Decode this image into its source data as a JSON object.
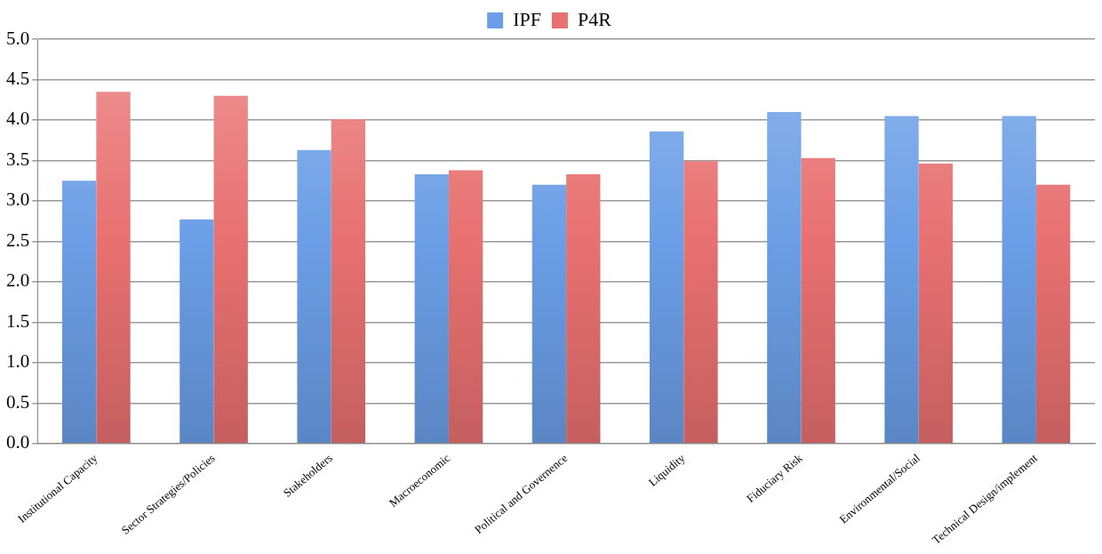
{
  "chart_data": {
    "type": "bar",
    "categories": [
      "Institutional Capacity",
      "Sector Strategies/Policies",
      "Stakeholders",
      "Macroeconomic",
      "Political and Governence",
      "Liquidity",
      "Fiduciary Risk",
      "Environmental/Social",
      "Technical Design/implement"
    ],
    "series": [
      {
        "name": "IPF",
        "color": "#6b9ee6",
        "values": [
          3.25,
          2.77,
          3.63,
          3.33,
          3.2,
          3.86,
          4.1,
          4.05,
          4.05
        ]
      },
      {
        "name": "P4R",
        "color": "#e87070",
        "values": [
          4.35,
          4.3,
          4.01,
          3.38,
          3.33,
          3.49,
          3.53,
          3.46,
          3.2
        ]
      }
    ],
    "ylim": [
      0,
      5
    ],
    "yticks": [
      {
        "value": 0,
        "label": "0.0"
      },
      {
        "value": 0.5,
        "label": "0.5"
      },
      {
        "value": 1,
        "label": "1.0"
      },
      {
        "value": 1.5,
        "label": "1.5"
      },
      {
        "value": 2,
        "label": "2.0"
      },
      {
        "value": 2.5,
        "label": "2.5"
      },
      {
        "value": 3,
        "label": "3.0"
      },
      {
        "value": 3.5,
        "label": "3.5"
      },
      {
        "value": 4,
        "label": "4.0"
      },
      {
        "value": 4.5,
        "label": "4.5"
      },
      {
        "value": 5,
        "label": "5.0"
      }
    ],
    "grid": "y",
    "legend": "top"
  }
}
